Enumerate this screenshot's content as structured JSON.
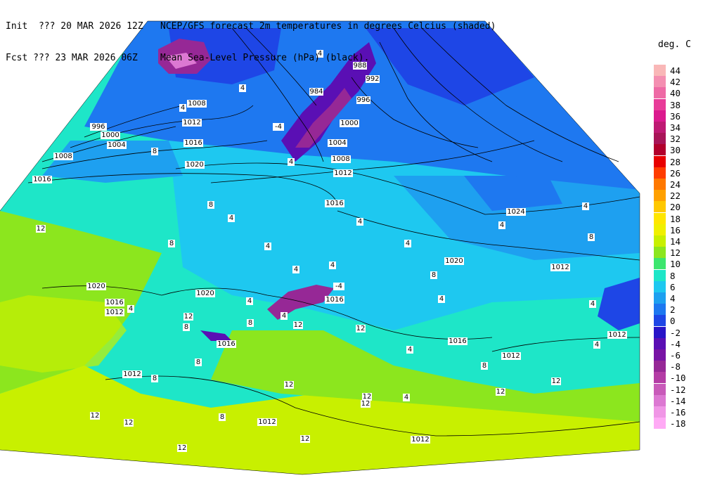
{
  "header": {
    "init_label": "Init  ??? 20 MAR 2026 12Z",
    "fcst_label": "Fcst ??? 23 MAR 2026 06Z",
    "title_line1": "NCEP/GFS forecast 2m temperatures in degrees Celcius (shaded)",
    "title_line2": "Mean Sea-Level Pressure (hPa) (black)."
  },
  "legend": {
    "unit": "deg. C",
    "entries": [
      {
        "label": "44",
        "color": "#f9b7b7"
      },
      {
        "label": "42",
        "color": "#f48fb1"
      },
      {
        "label": "40",
        "color": "#ee6aa5"
      },
      {
        "label": "38",
        "color": "#e83c99"
      },
      {
        "label": "36",
        "color": "#db1a8e"
      },
      {
        "label": "34",
        "color": "#be1a73"
      },
      {
        "label": "32",
        "color": "#a81558"
      },
      {
        "label": "30",
        "color": "#b2002c"
      },
      {
        "label": "28",
        "color": "#e80000"
      },
      {
        "label": "26",
        "color": "#ff3c00"
      },
      {
        "label": "24",
        "color": "#ff7800"
      },
      {
        "label": "22",
        "color": "#ffa000"
      },
      {
        "label": "20",
        "color": "#ffc800"
      },
      {
        "label": "18",
        "color": "#ffe600"
      },
      {
        "label": "16",
        "color": "#f0f000"
      },
      {
        "label": "14",
        "color": "#c8f000"
      },
      {
        "label": "12",
        "color": "#8ce61e"
      },
      {
        "label": "10",
        "color": "#3ce66e"
      },
      {
        "label": "8",
        "color": "#1ee6c8"
      },
      {
        "label": "6",
        "color": "#1ec8f0"
      },
      {
        "label": "4",
        "color": "#1ea0f0"
      },
      {
        "label": "2",
        "color": "#1e78f0"
      },
      {
        "label": "0",
        "color": "#1e46e6"
      },
      {
        "label": "-2",
        "color": "#2814c8"
      },
      {
        "label": "-4",
        "color": "#5a0fb4"
      },
      {
        "label": "-6",
        "color": "#7814a5"
      },
      {
        "label": "-8",
        "color": "#962896"
      },
      {
        "label": "-10",
        "color": "#b43ca5"
      },
      {
        "label": "-12",
        "color": "#c85ab9"
      },
      {
        "label": "-14",
        "color": "#dc78d2"
      },
      {
        "label": "-16",
        "color": "#f096e6"
      },
      {
        "label": "-18",
        "color": "#ffaaf5"
      }
    ]
  },
  "map": {
    "pressure_labels": [
      "1016",
      "1008",
      "996",
      "1000",
      "1004",
      "1012",
      "1016",
      "1020",
      "1008",
      "984",
      "988",
      "992",
      "996",
      "1000",
      "1004",
      "1008",
      "1012",
      "1016",
      "1024",
      "1020",
      "1012",
      "1016",
      "1012",
      "1020",
      "1016",
      "1016",
      "1012",
      "1016",
      "1012",
      "1012",
      "1012",
      "1012",
      "1020"
    ],
    "temperature_labels": [
      "12",
      "4",
      "4",
      "4",
      "4",
      "8",
      "8",
      "12",
      "4",
      "8",
      "4",
      "4",
      "4",
      "4",
      "4",
      "4",
      "8",
      "8",
      "8",
      "4",
      "4",
      "8",
      "12",
      "12",
      "12",
      "8",
      "12",
      "12",
      "8",
      "12",
      "12",
      "8",
      "4",
      "4",
      "12",
      "4",
      "-4",
      "4",
      "12",
      "12",
      "4",
      "4",
      "4",
      "8",
      "12",
      "-4"
    ]
  }
}
